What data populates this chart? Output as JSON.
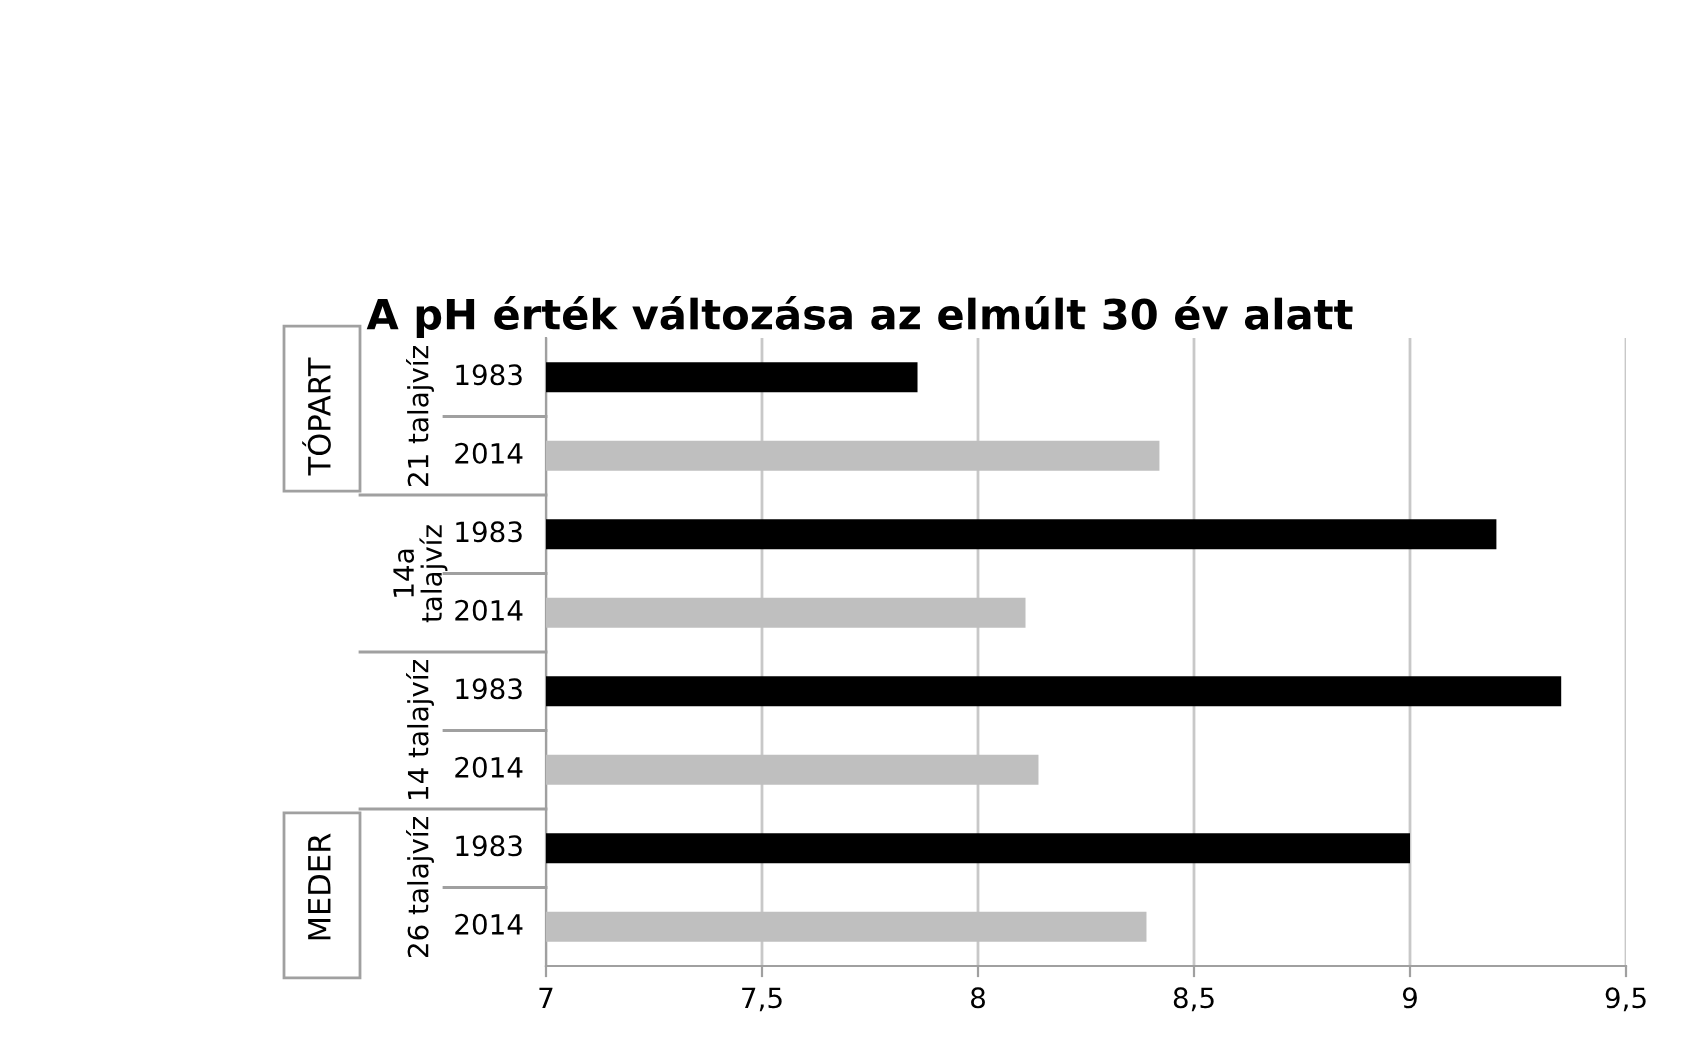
{
  "chart_data": {
    "type": "bar",
    "orientation": "horizontal",
    "title": "A pH érték változása az elmúlt 30 év alatt",
    "categories": [
      "1983",
      "2014",
      "1983",
      "2014",
      "1983",
      "2014",
      "1983",
      "2014"
    ],
    "values": [
      7.86,
      8.42,
      9.2,
      8.11,
      9.35,
      8.14,
      9.0,
      8.39
    ],
    "colors": [
      "#000000",
      "#bfbfbf",
      "#000000",
      "#bfbfbf",
      "#000000",
      "#bfbfbf",
      "#000000",
      "#bfbfbf"
    ],
    "xlim": [
      7,
      9.5
    ],
    "xticks": [
      7,
      {
        "value": 7.5,
        "label": "7,5"
      },
      8,
      {
        "value": 8.5,
        "label": "8,5"
      },
      9,
      {
        "value": 9.5,
        "label": "9,5"
      }
    ],
    "grid": "x",
    "annotations": [
      "21 talajvíz",
      "14a\ntalajvíz",
      "14 talajvíz",
      "26 talajvíz",
      "TÓPART",
      "MEDER"
    ]
  }
}
